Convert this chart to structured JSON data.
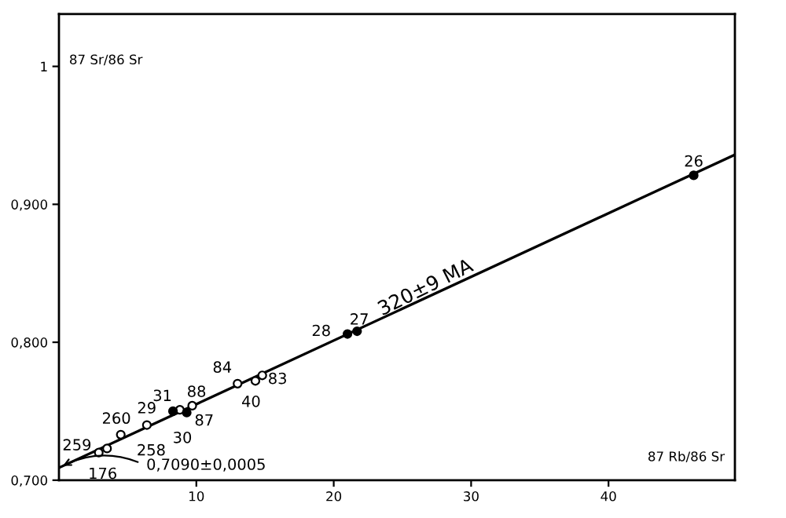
{
  "chart_data": {
    "type": "scatter",
    "xlabel": "87 Rb/86 Sr",
    "ylabel": "87 Sr/86 Sr",
    "xlim": [
      0,
      49.2
    ],
    "ylim": [
      0.7,
      1.038
    ],
    "xticks": [
      10,
      20,
      30,
      40
    ],
    "yticks": [
      {
        "value": 0.7,
        "label": "0,700"
      },
      {
        "value": 0.8,
        "label": "0,800"
      },
      {
        "value": 0.9,
        "label": "0,900"
      },
      1
    ],
    "grid": false,
    "series": [
      {
        "type": "line",
        "marker": "none",
        "color": "#000000",
        "x": [
          0,
          49.2
        ],
        "values": [
          0.709,
          0.936
        ]
      },
      {
        "marker": "circle",
        "color": "#ffffff",
        "x": [
          2.9,
          3.5,
          4.5,
          6.4,
          8.8,
          9.7,
          13.0,
          14.3,
          14.8
        ],
        "values": [
          0.72,
          0.723,
          0.733,
          0.74,
          0.751,
          0.754,
          0.77,
          0.772,
          0.776
        ]
      },
      {
        "marker": "circle",
        "color": "#000000",
        "x": [
          8.3,
          9.3,
          21.0,
          21.7,
          46.2
        ],
        "values": [
          0.75,
          0.749,
          0.806,
          0.808,
          0.921
        ]
      }
    ],
    "annotations": [
      {
        "text": "259",
        "x": 2.9,
        "y": 0.72
      },
      {
        "text": "176",
        "x": 3.5,
        "y": 0.723
      },
      {
        "text": "260",
        "x": 4.5,
        "y": 0.733
      },
      {
        "text": "258",
        "x": 6.4,
        "y": 0.74
      },
      {
        "text": "31",
        "x": 8.8,
        "y": 0.751
      },
      {
        "text": "88",
        "x": 9.7,
        "y": 0.754
      },
      {
        "text": "84",
        "x": 13.0,
        "y": 0.77
      },
      {
        "text": "40",
        "x": 14.3,
        "y": 0.772
      },
      {
        "text": "83",
        "x": 14.8,
        "y": 0.776
      },
      {
        "text": "29",
        "x": 8.3,
        "y": 0.75
      },
      {
        "text": "30",
        "x": 9.3,
        "y": 0.749
      },
      {
        "text": "87",
        "x": 9.3,
        "y": 0.749
      },
      {
        "text": "28",
        "x": 21.0,
        "y": 0.806
      },
      {
        "text": "27",
        "x": 21.7,
        "y": 0.808
      },
      {
        "text": "26",
        "x": 46.2,
        "y": 0.921
      },
      {
        "text": "320±9 MA",
        "x": 27,
        "y": 0.833
      },
      {
        "text": "0,7090±0,0005",
        "x": 0,
        "y": 0.709
      }
    ]
  }
}
